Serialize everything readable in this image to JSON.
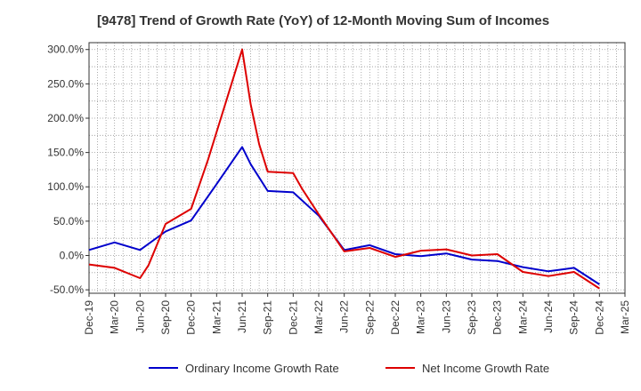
{
  "chart_data": {
    "type": "line",
    "title": "[9478]  Trend of Growth Rate (YoY) of 12-Month Moving Sum of Incomes",
    "xlabel": "",
    "ylabel": "",
    "x_ticks": [
      "Dec-19",
      "Mar-20",
      "Jun-20",
      "Sep-20",
      "Dec-20",
      "Mar-21",
      "Jun-21",
      "Sep-21",
      "Dec-21",
      "Mar-22",
      "Jun-22",
      "Sep-22",
      "Dec-22",
      "Mar-23",
      "Jun-23",
      "Sep-23",
      "Dec-23",
      "Mar-24",
      "Jun-24",
      "Sep-24",
      "Dec-24",
      "Mar-25"
    ],
    "y_ticks": [
      "-50.0%",
      "0.0%",
      "50.0%",
      "100.0%",
      "150.0%",
      "200.0%",
      "250.0%",
      "300.0%"
    ],
    "ylim": [
      -55,
      310
    ],
    "x_range": [
      "Dec-19",
      "Mar-25"
    ],
    "grid": true,
    "legend_position": "bottom",
    "series": [
      {
        "name": "Ordinary Income Growth Rate",
        "color": "#0000cc",
        "points": [
          [
            "Dec-19",
            8
          ],
          [
            "Mar-20",
            19
          ],
          [
            "Jun-20",
            8
          ],
          [
            "Sep-20",
            35
          ],
          [
            "Dec-20",
            51
          ],
          [
            "Mar-21",
            104
          ],
          [
            "Jun-21",
            158
          ],
          [
            "Jul-21",
            133
          ],
          [
            "Sep-21",
            94
          ],
          [
            "Dec-21",
            92
          ],
          [
            "Mar-22",
            58
          ],
          [
            "Jun-22",
            8
          ],
          [
            "Sep-22",
            15
          ],
          [
            "Dec-22",
            2
          ],
          [
            "Mar-23",
            -1
          ],
          [
            "Jun-23",
            3
          ],
          [
            "Sep-23",
            -6
          ],
          [
            "Dec-23",
            -8
          ],
          [
            "Mar-24",
            -17
          ],
          [
            "Jun-24",
            -23
          ],
          [
            "Sep-24",
            -18
          ],
          [
            "Dec-24",
            -42
          ]
        ]
      },
      {
        "name": "Net Income Growth Rate",
        "color": "#dd0000",
        "points": [
          [
            "Dec-19",
            -13
          ],
          [
            "Mar-20",
            -18
          ],
          [
            "Jun-20",
            -33
          ],
          [
            "Jul-20",
            -14
          ],
          [
            "Sep-20",
            46
          ],
          [
            "Dec-20",
            68
          ],
          [
            "Feb-21",
            140
          ],
          [
            "Jun-21",
            300
          ],
          [
            "Jul-21",
            220
          ],
          [
            "Aug-21",
            162
          ],
          [
            "Sep-21",
            122
          ],
          [
            "Dec-21",
            120
          ],
          [
            "Jan-22",
            98
          ],
          [
            "Mar-22",
            60
          ],
          [
            "Jun-22",
            6
          ],
          [
            "Sep-22",
            11
          ],
          [
            "Dec-22",
            -2
          ],
          [
            "Mar-23",
            7
          ],
          [
            "Jun-23",
            9
          ],
          [
            "Sep-23",
            0
          ],
          [
            "Dec-23",
            2
          ],
          [
            "Mar-24",
            -24
          ],
          [
            "Jun-24",
            -30
          ],
          [
            "Sep-24",
            -24
          ],
          [
            "Dec-24",
            -48
          ]
        ]
      }
    ]
  }
}
